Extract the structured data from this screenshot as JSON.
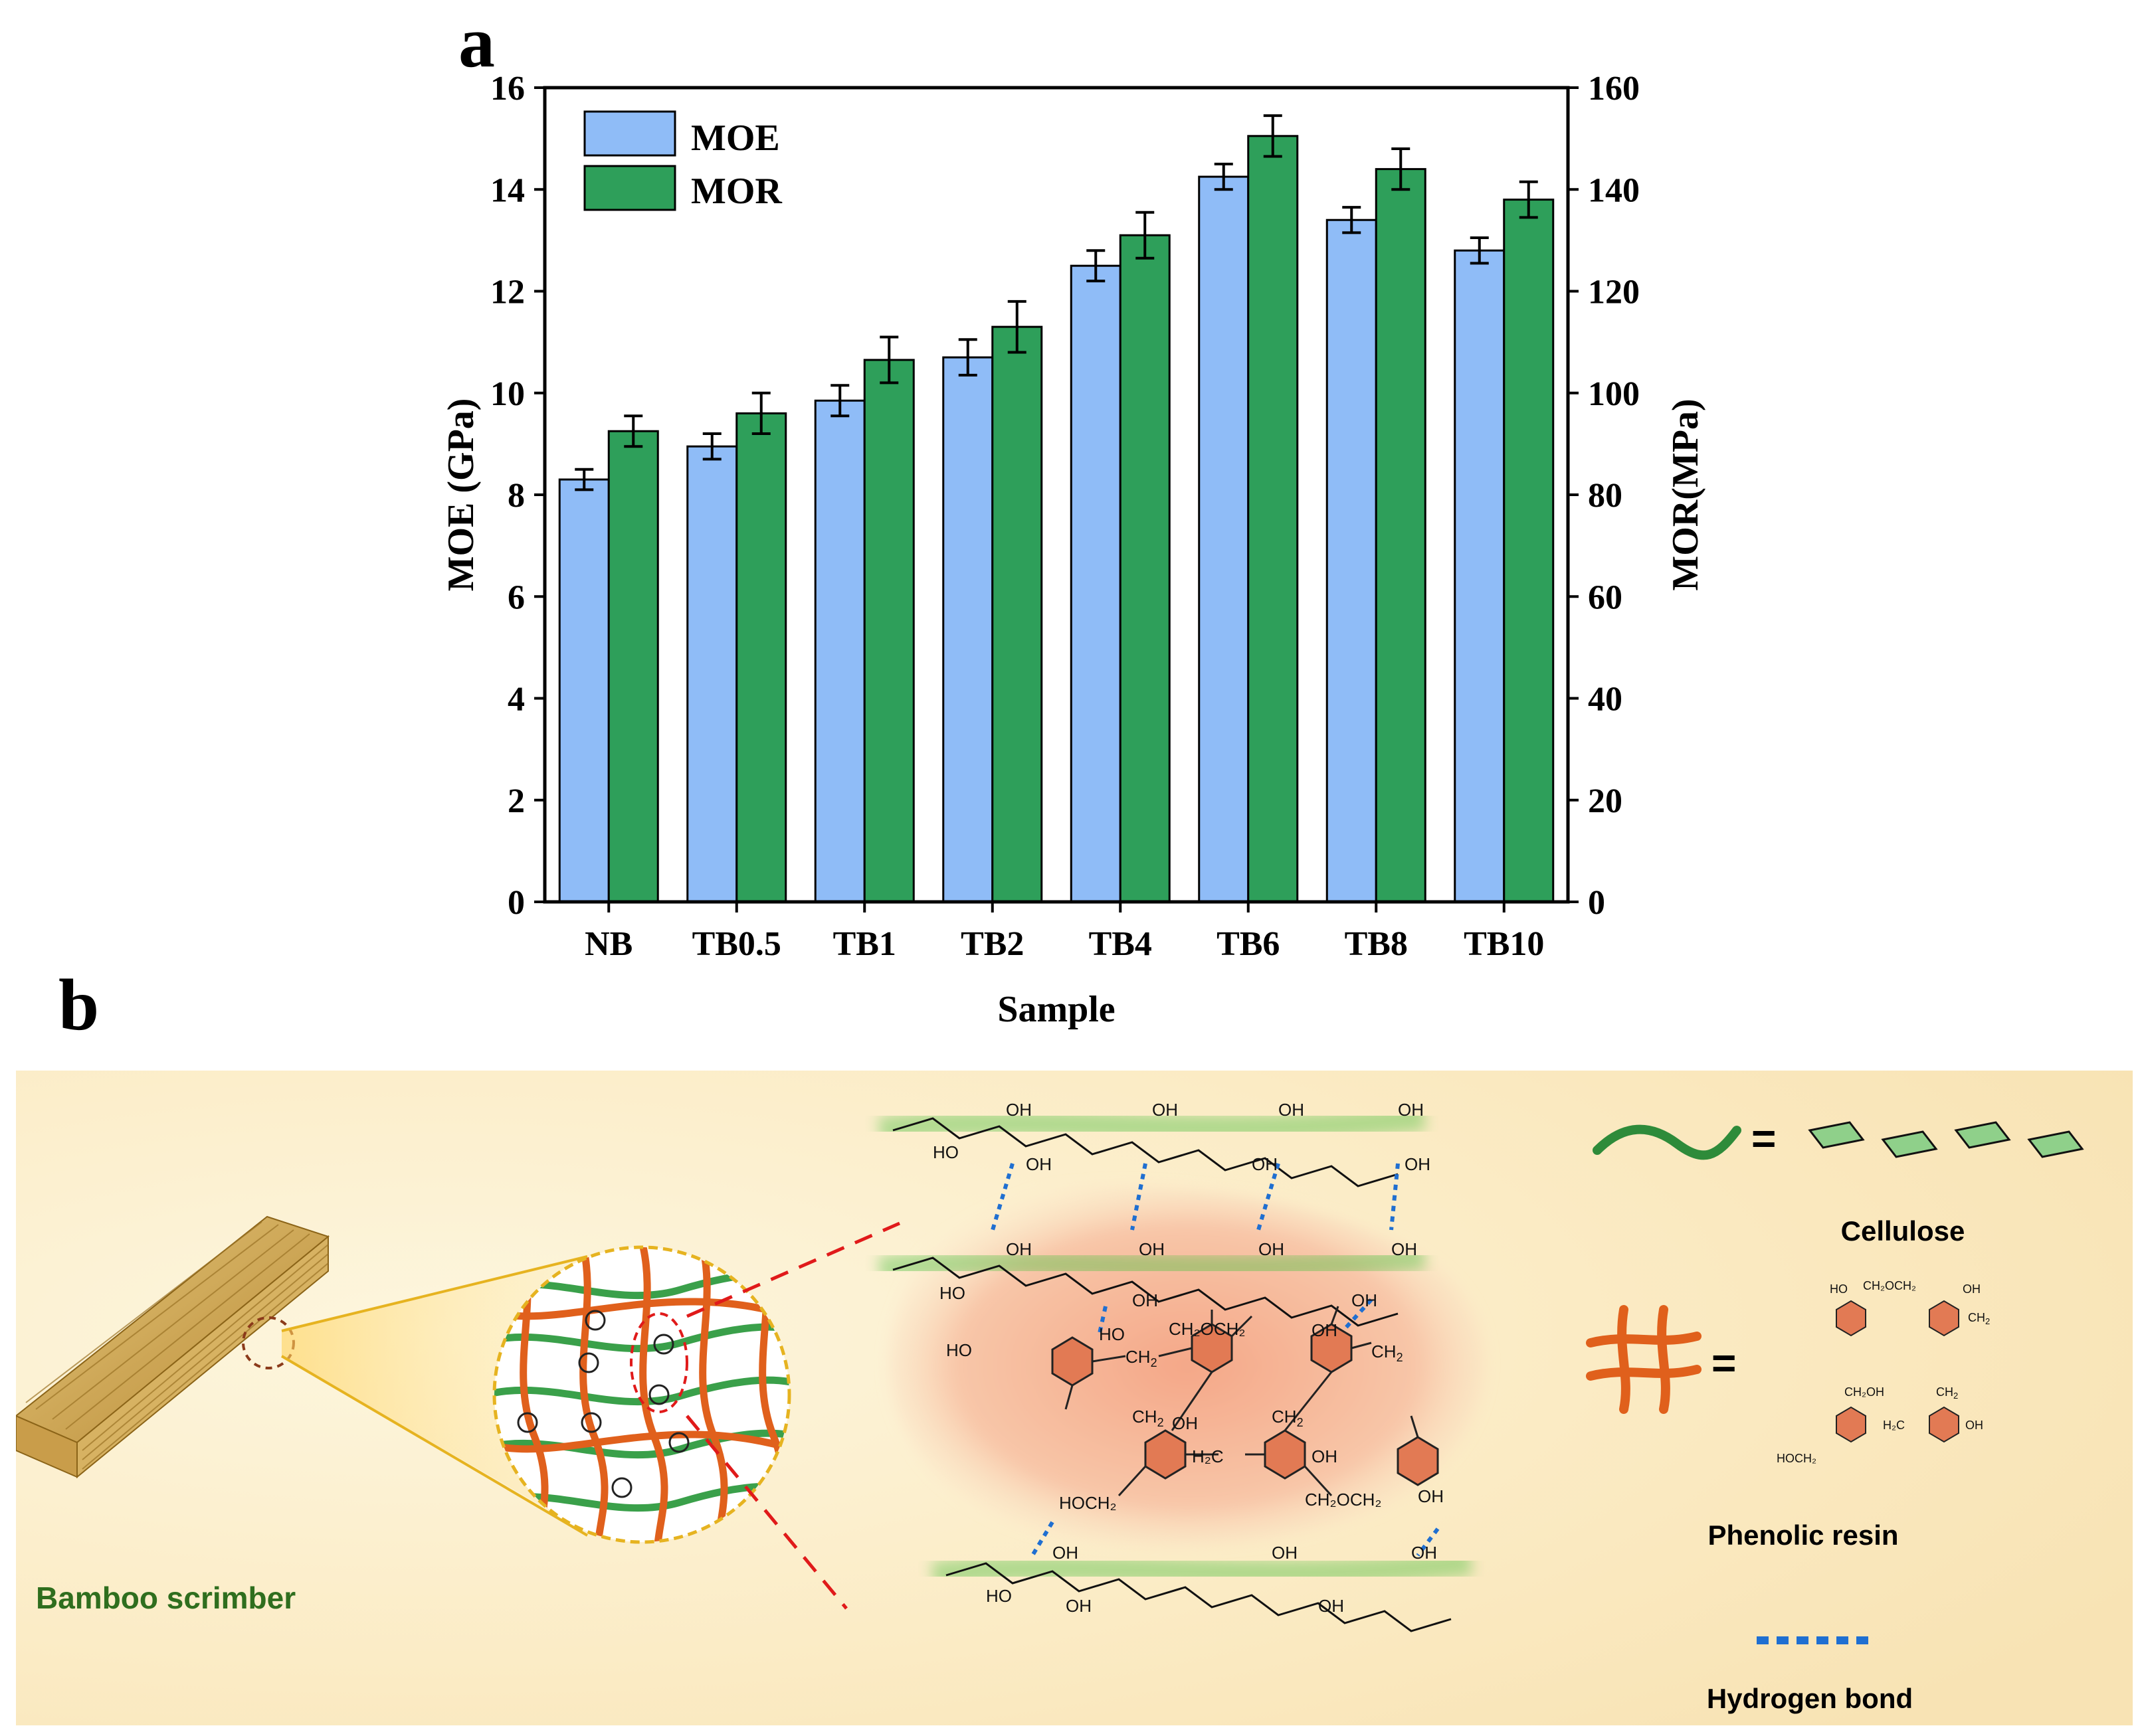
{
  "panels": {
    "a": "a",
    "b": "b"
  },
  "chart_data": {
    "type": "bar",
    "categories": [
      "NB",
      "TB0.5",
      "TB1",
      "TB2",
      "TB4",
      "TB6",
      "TB8",
      "TB10"
    ],
    "series": [
      {
        "name": "MOE",
        "axis": "left",
        "color": "#8fbcf7",
        "values": [
          8.3,
          8.95,
          9.85,
          10.7,
          12.5,
          14.25,
          13.4,
          12.8
        ],
        "errors": [
          0.2,
          0.25,
          0.3,
          0.35,
          0.3,
          0.25,
          0.25,
          0.25
        ]
      },
      {
        "name": "MOR",
        "axis": "right",
        "color": "#2e9f5a",
        "values": [
          92.5,
          96,
          106.5,
          113,
          131,
          150.5,
          144,
          138
        ],
        "errors": [
          3,
          4,
          4.5,
          5,
          4.5,
          4,
          4,
          3.5
        ]
      }
    ],
    "xlabel": "Sample",
    "ylabel_left": "MOE (GPa)",
    "ylabel_right": "MOR(MPa)",
    "ylim_left": [
      0,
      16
    ],
    "ylim_right": [
      0,
      160
    ],
    "yticks_left": [
      0,
      2,
      4,
      6,
      8,
      10,
      12,
      14,
      16
    ],
    "yticks_right": [
      0,
      20,
      40,
      60,
      80,
      100,
      120,
      140,
      160
    ],
    "legend_position": "top-left",
    "grid": false
  },
  "schematic": {
    "bamboo_label": "Bamboo scrimber",
    "legend": {
      "cellulose_label": "Cellulose",
      "phenolic_label": "Phenolic resin",
      "hbond_label": "Hydrogen bond",
      "equals": "="
    },
    "groups": {
      "oh": "OH",
      "ho": "HO",
      "o": "O",
      "ch2": "CH",
      "ch2oh": "CH₂OH",
      "ch2och2": "CH₂OCH₂",
      "h2c": "H₂C",
      "hoch2": "HOCH₂",
      "sub2": "2"
    },
    "colors": {
      "cellulose": "#2e8b3a",
      "resin": "#e0601c",
      "hbond": "#1f6fd1",
      "background": "#fbedc9"
    }
  }
}
